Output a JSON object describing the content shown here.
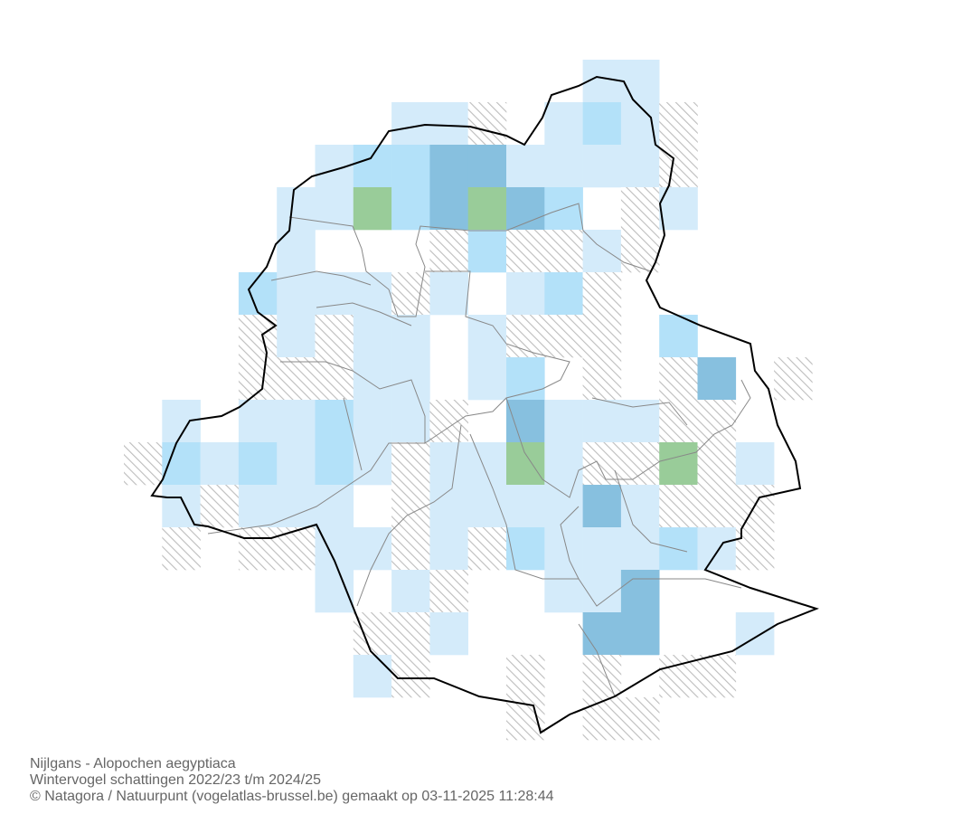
{
  "map": {
    "grid": [
      "............LL....",
      ".......LLH.LMLH...",
      ".....LMMDDLLLLH...",
      "....LLGMDGDM.HL...",
      "....L...HMHHLH....",
      "...MLLLHL.LMH.....",
      "...HLHLL.LHHH.M...",
      "...HHHLL.LM.H.HD.H",
      ".L.LLMLLH.DLLLHH..",
      "HMLMLMLHLLGLHHGHL.",
      ".LHLLL.HLLLLDLHHH.",
      ".H.HHLLHLHMLLLMLH.",
      ".....L.LH..LLD....",
      "......HHL...DD..L.",
      "......LH..H.H.HH..",
      "..........H.HH...."
    ],
    "classes": {
      "L": "#d4ebfa",
      "M": "#b3e1f9",
      "D": "#87c0df",
      "G": "#99cc99",
      "H": "hatch"
    },
    "caption": [
      "Nijlgans - Alopochen aegyptiaca",
      "Wintervogel schattingen 2022/23 t/m 2024/25",
      "© Natagora / Natuurpunt (vogelatlas-brussel.be) gemaakt op 03-11-2025 11:28:44"
    ]
  }
}
